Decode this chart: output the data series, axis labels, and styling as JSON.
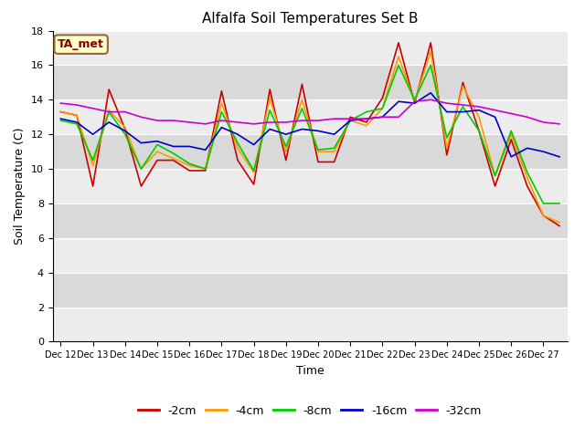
{
  "title": "Alfalfa Soil Temperatures Set B",
  "xlabel": "Time",
  "ylabel": "Soil Temperature (C)",
  "ylim": [
    0,
    18
  ],
  "yticks": [
    0,
    2,
    4,
    6,
    8,
    10,
    12,
    14,
    16,
    18
  ],
  "x_labels": [
    "Dec 12",
    "Dec 13",
    "Dec 14",
    "Dec 15",
    "Dec 16",
    "Dec 17",
    "Dec 18",
    "Dec 19",
    "Dec 20",
    "Dec 21",
    "Dec 22",
    "Dec 23",
    "Dec 24",
    "Dec 25",
    "Dec 26",
    "Dec 27"
  ],
  "annotation_text": "TA_met",
  "series": {
    "-2cm": {
      "color": "#cc0000",
      "values": [
        13.3,
        13.1,
        9.0,
        14.6,
        12.3,
        9.0,
        10.5,
        10.5,
        9.9,
        9.9,
        14.5,
        10.5,
        9.1,
        14.6,
        10.5,
        14.9,
        10.4,
        10.4,
        13.0,
        12.7,
        14.1,
        17.3,
        13.8,
        17.3,
        10.8,
        15.0,
        12.2,
        9.0,
        11.7,
        9.0,
        7.3,
        6.7
      ]
    },
    "-4cm": {
      "color": "#ff9900",
      "values": [
        13.3,
        13.1,
        10.2,
        13.4,
        12.4,
        10.0,
        11.0,
        10.6,
        10.2,
        10.0,
        13.8,
        11.2,
        9.8,
        14.1,
        11.0,
        14.0,
        11.0,
        11.0,
        12.8,
        12.5,
        13.5,
        16.5,
        13.9,
        16.8,
        11.2,
        14.8,
        13.0,
        9.6,
        12.0,
        9.5,
        7.3,
        6.9
      ]
    },
    "-8cm": {
      "color": "#00cc00",
      "values": [
        12.8,
        12.6,
        10.5,
        13.3,
        12.0,
        10.0,
        11.4,
        10.9,
        10.3,
        10.0,
        13.3,
        11.5,
        9.9,
        13.4,
        11.3,
        13.5,
        11.1,
        11.2,
        12.8,
        13.3,
        13.5,
        16.0,
        14.0,
        16.0,
        11.8,
        13.6,
        12.2,
        9.6,
        12.2,
        9.8,
        8.0,
        8.0
      ]
    },
    "-16cm": {
      "color": "#0000cc",
      "values": [
        12.9,
        12.7,
        12.0,
        12.7,
        12.2,
        11.5,
        11.6,
        11.3,
        11.3,
        11.1,
        12.4,
        12.0,
        11.4,
        12.3,
        12.0,
        12.3,
        12.2,
        12.0,
        12.8,
        12.9,
        13.0,
        13.9,
        13.8,
        14.4,
        13.3,
        13.3,
        13.4,
        13.0,
        10.7,
        11.2,
        11.0,
        10.7
      ]
    },
    "-32cm": {
      "color": "#cc00cc",
      "values": [
        13.8,
        13.7,
        13.5,
        13.3,
        13.3,
        13.0,
        12.8,
        12.8,
        12.7,
        12.6,
        12.8,
        12.7,
        12.6,
        12.7,
        12.7,
        12.8,
        12.8,
        12.9,
        12.9,
        12.9,
        13.0,
        13.0,
        13.9,
        14.0,
        13.8,
        13.7,
        13.6,
        13.4,
        13.2,
        13.0,
        12.7,
        12.6
      ]
    }
  },
  "bg_color": "#d9d9d9",
  "plot_bg_color": "#d9d9d9",
  "grid_color": "#ffffff",
  "white_region_below": 14
}
